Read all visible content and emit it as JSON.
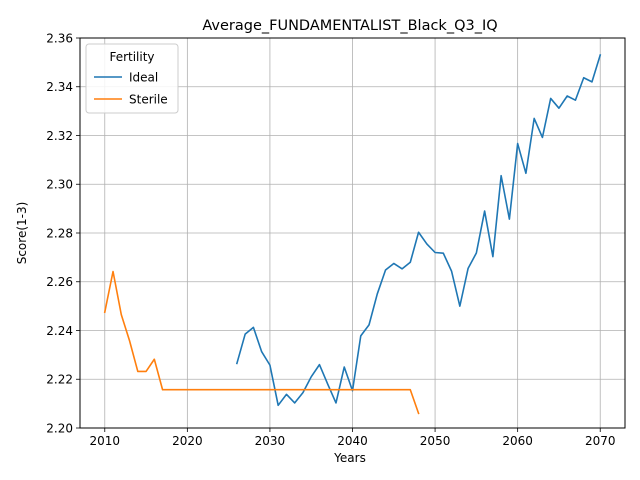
{
  "chart_data": {
    "type": "line",
    "title": "Average_FUNDAMENTALIST_Black_Q3_IQ",
    "xlabel": "Years",
    "ylabel": "Score(1-3)",
    "xlim": [
      2007,
      2073
    ],
    "ylim": [
      2.2,
      2.36
    ],
    "xticks": [
      2010,
      2020,
      2030,
      2040,
      2050,
      2060,
      2070
    ],
    "yticks": [
      2.2,
      2.22,
      2.24,
      2.26,
      2.28,
      2.3,
      2.32,
      2.34,
      2.36
    ],
    "ytick_labels": [
      "2.20",
      "2.22",
      "2.24",
      "2.26",
      "2.28",
      "2.30",
      "2.32",
      "2.34",
      "2.36"
    ],
    "grid": true,
    "legend": {
      "title": "Fertility",
      "position": "top-left"
    },
    "series": [
      {
        "name": "Ideal",
        "color": "#1f77b4",
        "x": [
          2026,
          2027,
          2028,
          2029,
          2030,
          2031,
          2032,
          2033,
          2034,
          2035,
          2036,
          2037,
          2038,
          2039,
          2040,
          2041,
          2042,
          2043,
          2044,
          2045,
          2046,
          2047,
          2048,
          2049,
          2050,
          2051,
          2052,
          2053,
          2054,
          2055,
          2056,
          2057,
          2058,
          2059,
          2060,
          2061,
          2062,
          2063,
          2064,
          2065,
          2066,
          2067,
          2068,
          2069,
          2070
        ],
        "y": [
          2.2265,
          2.2385,
          2.2413,
          2.2313,
          2.2258,
          2.2093,
          2.2138,
          2.2103,
          2.2145,
          2.221,
          2.226,
          2.218,
          2.2103,
          2.225,
          2.2153,
          2.2378,
          2.2423,
          2.255,
          2.2648,
          2.2675,
          2.2653,
          2.268,
          2.2803,
          2.2755,
          2.272,
          2.2717,
          2.2643,
          2.25,
          2.2655,
          2.2718,
          2.289,
          2.2703,
          2.3035,
          2.2857,
          2.3167,
          2.3045,
          2.327,
          2.3192,
          2.3352,
          2.3312,
          2.3362,
          2.3345,
          2.3437,
          2.342,
          2.353
        ]
      },
      {
        "name": "Sterile",
        "color": "#ff7f0e",
        "x": [
          2010,
          2011,
          2012,
          2013,
          2014,
          2015,
          2016,
          2017,
          2018,
          2019,
          2020,
          2021,
          2022,
          2023,
          2024,
          2025,
          2026,
          2027,
          2028,
          2029,
          2030,
          2031,
          2032,
          2033,
          2034,
          2035,
          2036,
          2037,
          2038,
          2039,
          2040,
          2041,
          2042,
          2043,
          2044,
          2045,
          2046,
          2047,
          2048
        ],
        "y": [
          2.2475,
          2.2642,
          2.2465,
          2.2358,
          2.2232,
          2.2232,
          2.2282,
          2.2157,
          2.2157,
          2.2157,
          2.2157,
          2.2157,
          2.2157,
          2.2157,
          2.2157,
          2.2157,
          2.2157,
          2.2157,
          2.2157,
          2.2157,
          2.2157,
          2.2157,
          2.2157,
          2.2157,
          2.2157,
          2.2157,
          2.2157,
          2.2157,
          2.2157,
          2.2157,
          2.2157,
          2.2157,
          2.2157,
          2.2157,
          2.2157,
          2.2157,
          2.2157,
          2.2157,
          2.206
        ]
      }
    ]
  }
}
